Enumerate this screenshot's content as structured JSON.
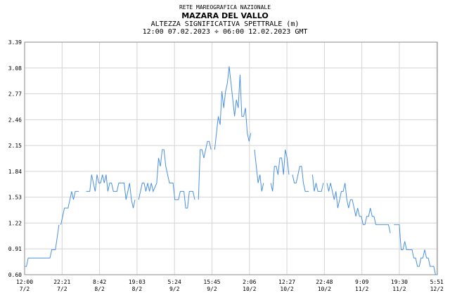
{
  "header": {
    "network": "RETE MAREOGRAFICA NAZIONALE",
    "station": "MAZARA DEL VALLO",
    "quantity": "ALTEZZA SIGNIFICATIVA SPETTRALE (m)",
    "period": "12:00 07.02.2023 ÷ 06:00 12.02.2023 GMT"
  },
  "chart_data": {
    "type": "line",
    "title": "MAZARA DEL VALLO",
    "ylabel": "ALTEZZA SIGNIFICATIVA SPETTRALE (m)",
    "xlabel": "",
    "ylim": [
      0.6,
      3.39
    ],
    "yticks": [
      "0.60",
      "0.91",
      "1.22",
      "1.53",
      "1.84",
      "2.15",
      "2.46",
      "2.77",
      "3.08",
      "3.39"
    ],
    "xlim_hours": [
      0,
      114
    ],
    "xticks": [
      {
        "time": "12:00",
        "date": "7/2",
        "hour": 0
      },
      {
        "time": "22:21",
        "date": "7/2",
        "hour": 10.35
      },
      {
        "time": "8:42",
        "date": "8/2",
        "hour": 20.7
      },
      {
        "time": "19:03",
        "date": "8/2",
        "hour": 31.05
      },
      {
        "time": "5:24",
        "date": "9/2",
        "hour": 41.4
      },
      {
        "time": "15:45",
        "date": "9/2",
        "hour": 51.75
      },
      {
        "time": "2:06",
        "date": "10/2",
        "hour": 62.1
      },
      {
        "time": "12:27",
        "date": "10/2",
        "hour": 72.45
      },
      {
        "time": "22:48",
        "date": "10/2",
        "hour": 82.8
      },
      {
        "time": "9:09",
        "date": "11/2",
        "hour": 93.15
      },
      {
        "time": "19:30",
        "date": "11/2",
        "hour": 103.5
      },
      {
        "time": "5:51",
        "date": "12/2",
        "hour": 113.85
      }
    ],
    "grid": true,
    "color": "#4a90e2",
    "series": [
      {
        "segments": [
          [
            [
              0,
              0.7
            ],
            [
              0.5,
              0.7
            ],
            [
              1,
              0.8
            ],
            [
              5,
              0.8
            ],
            [
              7,
              0.8
            ],
            [
              7.5,
              0.9
            ],
            [
              8.5,
              0.9
            ],
            [
              9.5,
              1.2
            ]
          ],
          [
            [
              10,
              1.2
            ],
            [
              10.5,
              1.3
            ],
            [
              11,
              1.4
            ],
            [
              12,
              1.4
            ],
            [
              12.5,
              1.5
            ],
            [
              13,
              1.6
            ],
            [
              13.5,
              1.5
            ],
            [
              14,
              1.6
            ],
            [
              15,
              1.6
            ]
          ],
          [
            [
              17,
              1.6
            ],
            [
              18,
              1.6
            ],
            [
              18.5,
              1.8
            ],
            [
              19,
              1.7
            ],
            [
              19.5,
              1.6
            ],
            [
              20,
              1.8
            ],
            [
              20.5,
              1.7
            ],
            [
              21,
              1.7
            ],
            [
              21.5,
              1.8
            ],
            [
              22,
              1.7
            ],
            [
              22.5,
              1.8
            ],
            [
              23,
              1.6
            ],
            [
              23.5,
              1.7
            ],
            [
              24,
              1.7
            ],
            [
              24.5,
              1.6
            ],
            [
              25.5,
              1.6
            ],
            [
              26,
              1.7
            ],
            [
              27.5,
              1.7
            ],
            [
              28,
              1.5
            ],
            [
              28.5,
              1.6
            ],
            [
              29,
              1.7
            ],
            [
              29.5,
              1.5
            ],
            [
              30,
              1.4
            ],
            [
              30.5,
              1.5
            ]
          ],
          [
            [
              31.5,
              1.5
            ],
            [
              32,
              1.6
            ],
            [
              32.5,
              1.7
            ],
            [
              33,
              1.7
            ],
            [
              33.5,
              1.6
            ],
            [
              34,
              1.7
            ],
            [
              34.5,
              1.6
            ],
            [
              35,
              1.7
            ],
            [
              35.5,
              1.6
            ],
            [
              36.5,
              1.7
            ],
            [
              37,
              2.0
            ],
            [
              37.5,
              1.9
            ],
            [
              38,
              2.1
            ],
            [
              38.5,
              2.1
            ],
            [
              39,
              1.9
            ],
            [
              39.5,
              1.8
            ],
            [
              40,
              1.7
            ],
            [
              41,
              1.7
            ],
            [
              41.5,
              1.5
            ],
            [
              42.5,
              1.5
            ],
            [
              43,
              1.6
            ],
            [
              44,
              1.6
            ],
            [
              44.5,
              1.4
            ],
            [
              45,
              1.4
            ],
            [
              45.5,
              1.6
            ],
            [
              46.5,
              1.6
            ],
            [
              47,
              1.5
            ]
          ],
          [
            [
              48,
              1.5
            ],
            [
              48.5,
              2.1
            ],
            [
              49,
              2.1
            ],
            [
              49.5,
              2.0
            ],
            [
              50,
              2.1
            ],
            [
              50.5,
              2.2
            ],
            [
              51,
              2.2
            ],
            [
              51.5,
              2.1
            ]
          ],
          [
            [
              52.5,
              2.1
            ],
            [
              53,
              2.3
            ],
            [
              53.5,
              2.5
            ],
            [
              54,
              2.4
            ],
            [
              54.5,
              2.8
            ],
            [
              55,
              2.6
            ],
            [
              55.5,
              2.8
            ],
            [
              56,
              2.9
            ],
            [
              56.5,
              3.1
            ],
            [
              57,
              2.9
            ],
            [
              57.5,
              2.7
            ],
            [
              58,
              2.5
            ],
            [
              58.5,
              2.7
            ],
            [
              59,
              2.6
            ],
            [
              59.5,
              3.0
            ],
            [
              60,
              2.5
            ],
            [
              60.5,
              2.5
            ],
            [
              61,
              2.6
            ],
            [
              61.5,
              2.3
            ],
            [
              62,
              2.2
            ],
            [
              62.5,
              2.3
            ]
          ],
          [
            [
              63.5,
              2.1
            ],
            [
              64,
              1.9
            ],
            [
              64.5,
              1.7
            ],
            [
              65,
              1.8
            ],
            [
              65.5,
              1.6
            ],
            [
              66,
              1.7
            ]
          ],
          [
            [
              68,
              1.7
            ],
            [
              68.5,
              1.6
            ],
            [
              69,
              1.9
            ],
            [
              69.5,
              1.9
            ],
            [
              70,
              1.8
            ],
            [
              70.5,
              2.0
            ],
            [
              71,
              2.0
            ],
            [
              71.5,
              1.8
            ],
            [
              72,
              2.1
            ],
            [
              72.5,
              2.0
            ],
            [
              73,
              1.8
            ]
          ],
          [
            [
              74,
              1.8
            ],
            [
              74.5,
              1.7
            ],
            [
              75,
              1.7
            ],
            [
              75.5,
              1.8
            ],
            [
              76,
              1.9
            ],
            [
              76.5,
              1.9
            ],
            [
              77,
              1.7
            ],
            [
              77.5,
              1.6
            ],
            [
              78.5,
              1.6
            ]
          ],
          [
            [
              79.5,
              1.8
            ],
            [
              80,
              1.6
            ],
            [
              80.5,
              1.7
            ],
            [
              81,
              1.6
            ],
            [
              82,
              1.6
            ],
            [
              82.5,
              1.7
            ]
          ],
          [
            [
              83.5,
              1.7
            ],
            [
              84,
              1.6
            ],
            [
              84.5,
              1.7
            ],
            [
              85,
              1.6
            ],
            [
              85.5,
              1.5
            ],
            [
              86,
              1.6
            ],
            [
              86.5,
              1.4
            ],
            [
              87,
              1.5
            ],
            [
              87.5,
              1.6
            ],
            [
              88,
              1.6
            ],
            [
              88.5,
              1.7
            ],
            [
              89,
              1.5
            ],
            [
              89.5,
              1.4
            ],
            [
              90,
              1.5
            ],
            [
              90.5,
              1.5
            ],
            [
              91,
              1.4
            ],
            [
              91.5,
              1.3
            ],
            [
              92,
              1.4
            ],
            [
              92.5,
              1.3
            ],
            [
              93,
              1.3
            ],
            [
              93.5,
              1.2
            ],
            [
              94,
              1.2
            ],
            [
              94.5,
              1.3
            ],
            [
              95,
              1.3
            ],
            [
              95.5,
              1.4
            ],
            [
              96,
              1.3
            ],
            [
              96.5,
              1.3
            ],
            [
              97,
              1.2
            ],
            [
              100.5,
              1.2
            ],
            [
              101,
              1.1
            ]
          ],
          [
            [
              102,
              1.2
            ],
            [
              103.5,
              1.2
            ],
            [
              104,
              0.9
            ],
            [
              104.5,
              0.9
            ],
            [
              105,
              1.0
            ],
            [
              105.5,
              0.9
            ],
            [
              107,
              0.9
            ],
            [
              107.5,
              0.8
            ],
            [
              108,
              0.8
            ],
            [
              108.5,
              0.7
            ],
            [
              109,
              0.7
            ],
            [
              109.5,
              0.8
            ],
            [
              110,
              0.8
            ],
            [
              110.5,
              0.9
            ],
            [
              111,
              0.8
            ],
            [
              111.5,
              0.8
            ],
            [
              112,
              0.7
            ],
            [
              113,
              0.7
            ],
            [
              113.5,
              0.6
            ],
            [
              114,
              0.6
            ]
          ]
        ]
      }
    ]
  }
}
